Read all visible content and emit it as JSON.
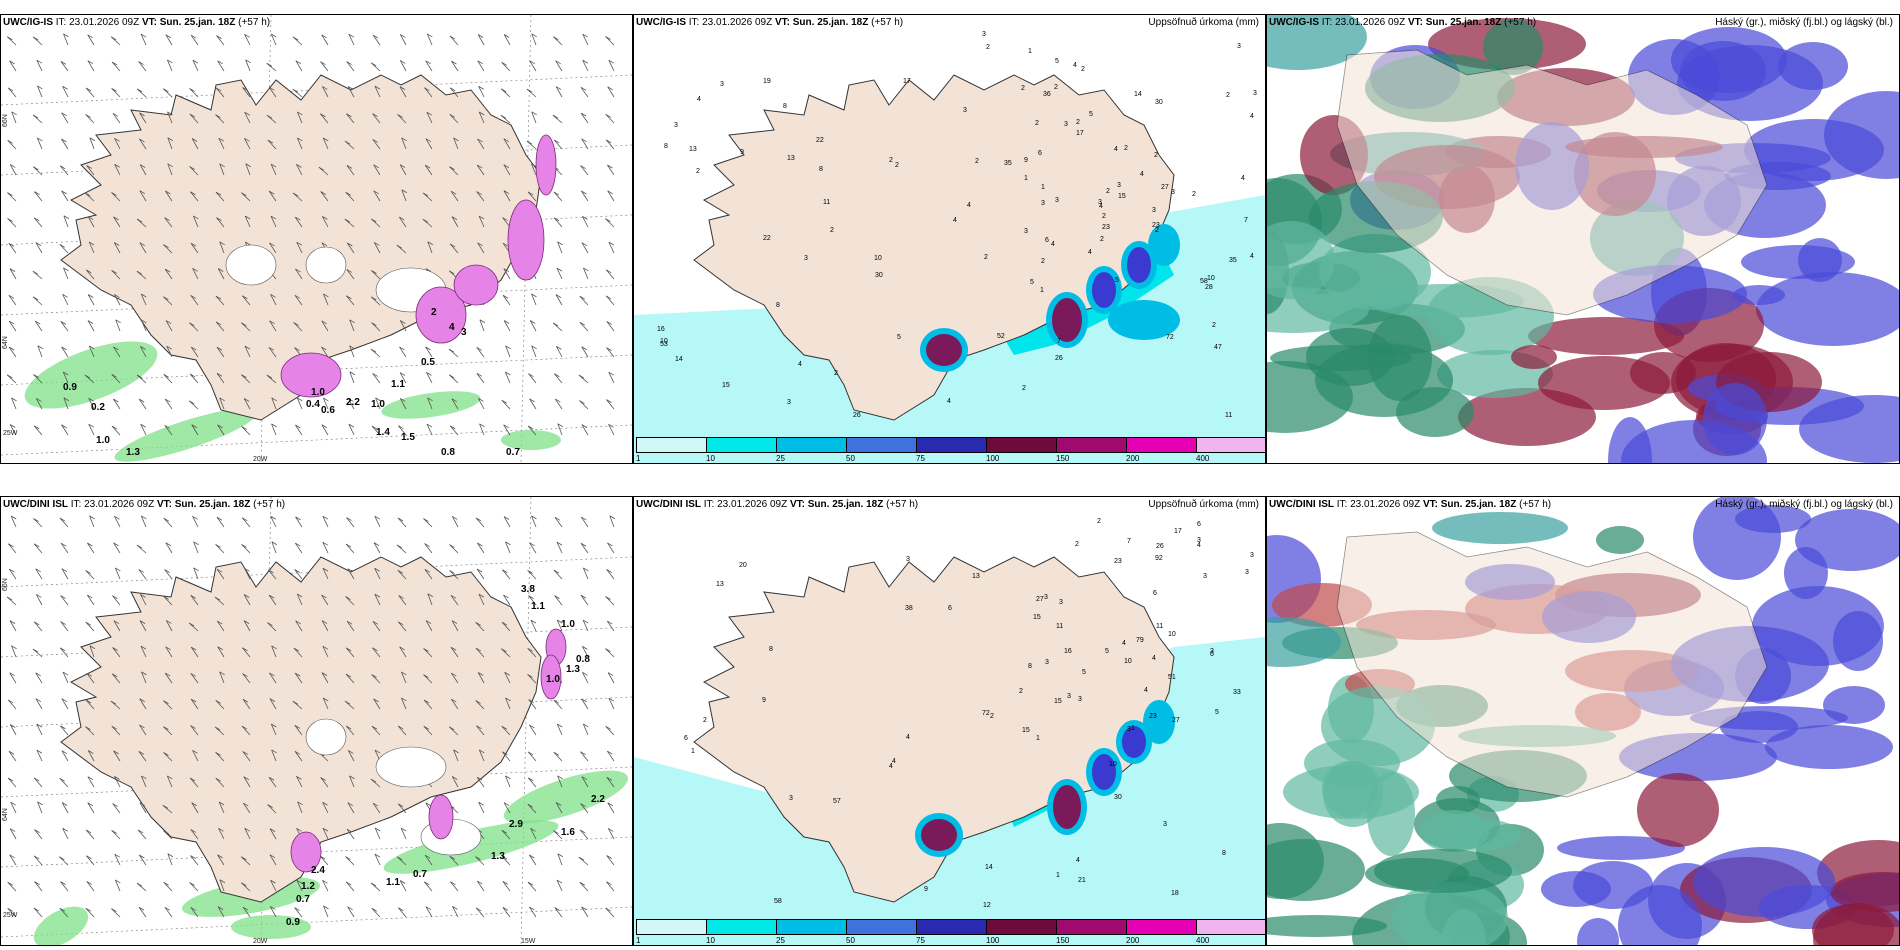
{
  "rows": [
    {
      "model": "UWC/IG-IS",
      "it_label": "IT:",
      "it_value": "23.01.2026 09Z",
      "vt_label": "VT:",
      "vt_value": "Sun. 25.jan. 18Z",
      "lead": "(+57 h)",
      "wind_labels": [
        "0.9",
        "0.2",
        "1.0",
        "1.3",
        "0.8",
        "0.7",
        "0.5",
        "1.1",
        "1.0",
        "0.6",
        "2.2",
        "1.4",
        "1.5",
        "2",
        "4",
        "3",
        "0.4",
        "1.0"
      ],
      "precip_labels": [
        "2",
        "3",
        "2",
        "3",
        "3",
        "3",
        "2",
        "3",
        "2",
        "3",
        "3",
        "2",
        "2",
        "1",
        "2",
        "3",
        "3",
        "3",
        "2",
        "2",
        "4",
        "2",
        "4",
        "6",
        "9",
        "3",
        "1",
        "2",
        "4",
        "4",
        "4",
        "5",
        "2",
        "4",
        "4",
        "2",
        "1",
        "17",
        "23",
        "30",
        "13",
        "4",
        "1",
        "2",
        "3",
        "4",
        "4",
        "2",
        "2",
        "2",
        "4",
        "3",
        "3",
        "10",
        "5",
        "3",
        "11",
        "4",
        "2",
        "17",
        "15",
        "35",
        "36",
        "2",
        "4",
        "7",
        "2",
        "3",
        "3",
        "8",
        "2",
        "2",
        "10",
        "10",
        "47",
        "8",
        "15",
        "53",
        "52",
        "22",
        "72",
        "16",
        "58",
        "14",
        "6",
        "5",
        "19",
        "27",
        "26",
        "26",
        "28",
        "30",
        "35",
        "8",
        "13",
        "22",
        "14",
        "4",
        "5",
        "2",
        "2",
        "11",
        "7",
        "5",
        "8",
        "9",
        "2"
      ],
      "lat_labels": [
        "66N",
        "64N"
      ],
      "lon_labels": [
        "20W",
        "25W"
      ]
    },
    {
      "model": "UWC/DINI ISL",
      "it_label": "IT:",
      "it_value": "23.01.2026 09Z",
      "vt_label": "VT:",
      "vt_value": "Sun. 25.jan. 18Z",
      "lead": "(+57 h)",
      "wind_labels": [
        "3.8",
        "1.1",
        "1.0",
        "0.8",
        "1.3",
        "1.0",
        "2.2",
        "2.9",
        "1.6",
        "1.3",
        "0.7",
        "1.1",
        "0.9",
        "1.2",
        "2.4",
        "0.7"
      ],
      "precip_labels": [
        "1",
        "3",
        "3",
        "3",
        "2",
        "1",
        "3",
        "5",
        "3",
        "3",
        "7",
        "2",
        "4",
        "3",
        "3",
        "5",
        "6",
        "4",
        "11",
        "6",
        "3",
        "2",
        "3",
        "8",
        "6",
        "15",
        "17",
        "10",
        "11",
        "27",
        "27",
        "4",
        "2",
        "26",
        "23",
        "3",
        "51",
        "79",
        "72",
        "15",
        "58",
        "92",
        "38",
        "4",
        "57",
        "30",
        "4",
        "5",
        "14",
        "16",
        "13",
        "13",
        "23",
        "33",
        "10",
        "9",
        "4",
        "3",
        "2",
        "20",
        "21",
        "18",
        "12",
        "15",
        "10",
        "8",
        "1",
        "4",
        "1",
        "3",
        "4",
        "6",
        "6",
        "9",
        "3",
        "8"
      ],
      "lat_labels": [
        "66N",
        "64N"
      ],
      "lon_labels": [
        "20W",
        "15W",
        "25W"
      ]
    }
  ],
  "precip_title": "Uppsöfnuð úrkoma (mm)",
  "cloud_title": "Háský (gr.), miðský (fj.bl.) og lágský (bl.)",
  "legend": {
    "ticks": [
      "1",
      "10",
      "25",
      "50",
      "75",
      "100",
      "150",
      "200",
      "400"
    ],
    "colors": [
      "#d2f7f7",
      "#00e8e8",
      "#00bde6",
      "#3f72dd",
      "#2a2ab0",
      "#6e0a3c",
      "#a00a6e",
      "#e600b4",
      "#f0b4f0"
    ]
  },
  "colors": {
    "land": "#f3e3d6",
    "sea_light": "#b6f7f7",
    "sea_cyan": "#00e5ec",
    "snow": "#f0a0f0",
    "green": "#6fdc7a",
    "cloud_red": "#8b1a3a",
    "cloud_blue": "#4a4ad8",
    "cloud_green": "#2a8a6a"
  }
}
